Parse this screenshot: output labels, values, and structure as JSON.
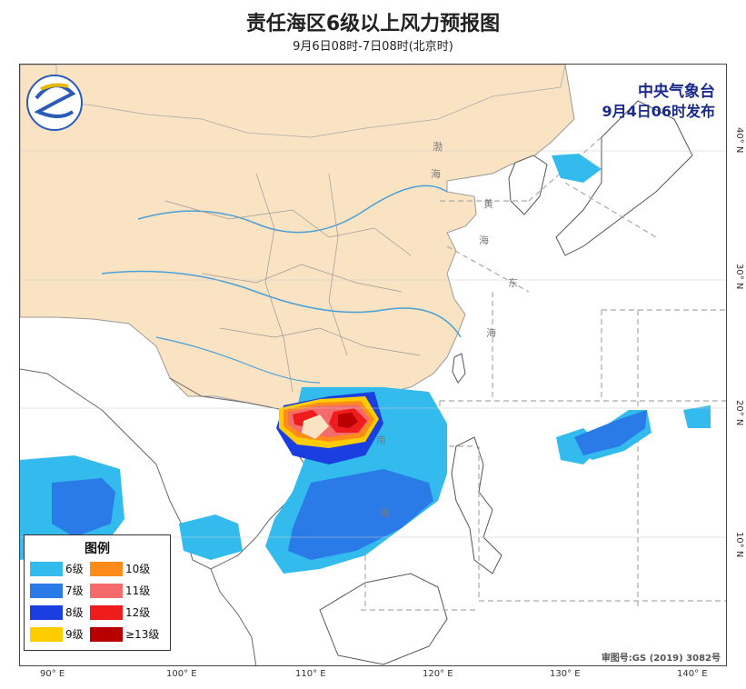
{
  "header": {
    "title": "责任海区6级以上风力预报图",
    "subtitle": "9月6日08时-7日08时(北京时)"
  },
  "issuer": {
    "line1": "中央气象台",
    "line2": "9月4日06时发布"
  },
  "approval_number": "审图号:GS (2019) 3082号",
  "sea_labels": [
    "渤",
    "海",
    "黄",
    "海",
    "东",
    "海",
    "南",
    "海"
  ],
  "legend": {
    "title": "图例",
    "items": [
      {
        "label": "6级",
        "color": "#33bbee"
      },
      {
        "label": "10级",
        "color": "#ff8c1a"
      },
      {
        "label": "7级",
        "color": "#2a7ae8"
      },
      {
        "label": "11级",
        "color": "#f56a6a"
      },
      {
        "label": "8级",
        "color": "#1a3ee0"
      },
      {
        "label": "12级",
        "color": "#ee1c1c"
      },
      {
        "label": "9级",
        "color": "#ffcc00"
      },
      {
        "label": "≥13级",
        "color": "#b80000"
      }
    ]
  },
  "longitude_labels": [
    "90° E",
    "100° E",
    "110° E",
    "120° E",
    "130° E",
    "140° E"
  ],
  "latitude_labels": [
    "40° N",
    "30° N",
    "20° N",
    "10° N"
  ],
  "colors": {
    "land_china": "#fae3c3",
    "ocean": "#ffffff",
    "boundary": "#888888",
    "river": "#4a9fd8"
  }
}
